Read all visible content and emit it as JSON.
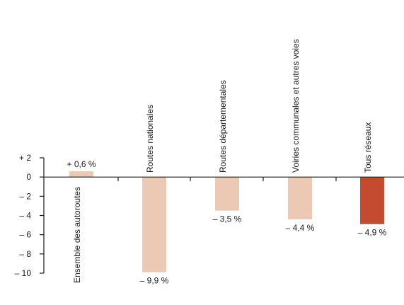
{
  "chart_data": {
    "type": "bar",
    "categories": [
      "Ensemble des autoroutes",
      "Routes nationales",
      "Routes départementales",
      "Voiries communales et autres voies",
      "Tous réseaux"
    ],
    "values": [
      0.6,
      -9.9,
      -3.5,
      -4.4,
      -4.9
    ],
    "data_labels": [
      "+ 0,6 %",
      "– 9,9 %",
      "– 3,5 %",
      "– 4,4 %",
      "– 4,9 %"
    ],
    "y_ticks": [
      2,
      0,
      -2,
      -4,
      -6,
      -8,
      -10
    ],
    "y_tick_labels": [
      "+ 2",
      "0",
      "– 2",
      "– 4",
      "– 6",
      "– 8",
      "– 10"
    ],
    "ylim": [
      -10,
      2
    ],
    "grid": false,
    "colors": {
      "bar": "#ecc9b5",
      "highlight": "#c44b30",
      "axis": "#1a1a1a"
    },
    "highlight_index": 4
  }
}
